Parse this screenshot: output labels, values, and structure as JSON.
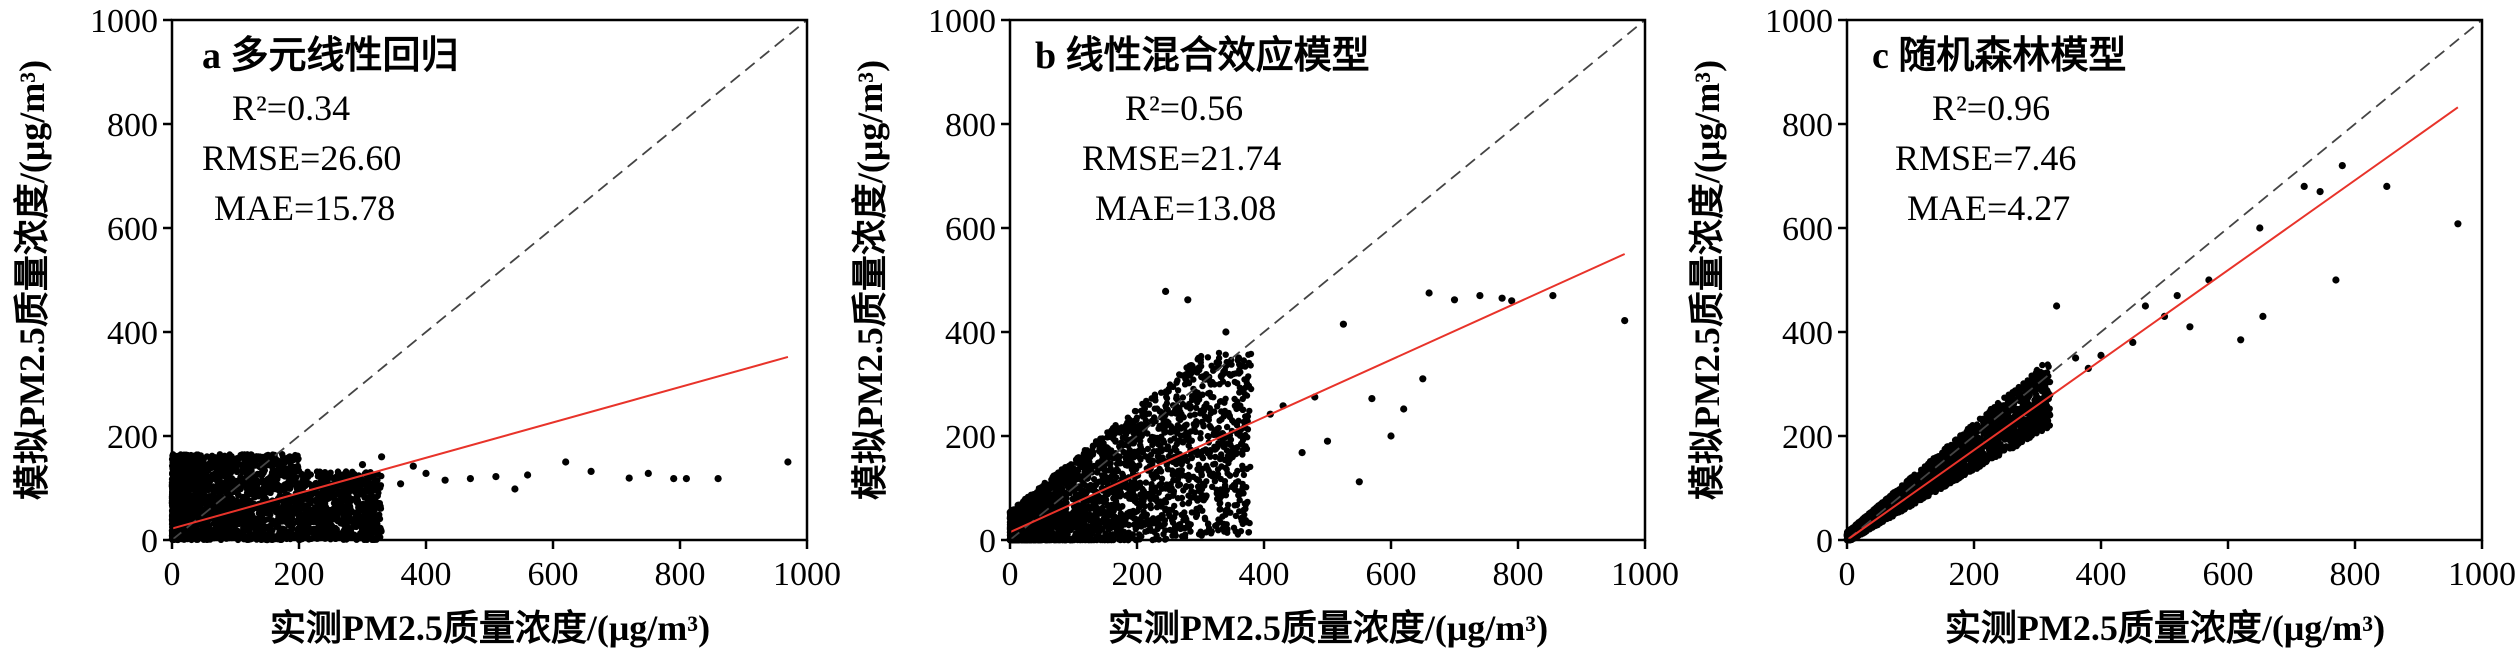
{
  "chart_data": [
    {
      "type": "scatter",
      "panel_label": "a 多元线性回归",
      "stats": {
        "r2_label": "R²=0.34",
        "rmse_label": "RMSE=26.60",
        "mae_label": "MAE=15.78"
      },
      "xlabel": "实测PM2.5质量浓度/(μg/m³)",
      "ylabel": "模拟PM2.5质量浓度/(μg/m³)",
      "xlim": [
        0,
        1000
      ],
      "ylim": [
        0,
        1000
      ],
      "x_ticks": [
        "0",
        "200",
        "400",
        "600",
        "800",
        "1000"
      ],
      "y_ticks": [
        "0",
        "200",
        "400",
        "600",
        "800",
        "1000"
      ],
      "reference_line": {
        "style": "dashed",
        "color": "#444444",
        "from": [
          0,
          0
        ],
        "to": [
          1000,
          1000
        ]
      },
      "fit_line": {
        "color": "#e8332a",
        "from": [
          0,
          22
        ],
        "to": [
          970,
          352
        ]
      },
      "points": [
        [
          400,
          128
        ],
        [
          430,
          115
        ],
        [
          470,
          118
        ],
        [
          510,
          122
        ],
        [
          540,
          98
        ],
        [
          560,
          125
        ],
        [
          620,
          150
        ],
        [
          660,
          132
        ],
        [
          720,
          119
        ],
        [
          750,
          128
        ],
        [
          790,
          118
        ],
        [
          810,
          118
        ],
        [
          860,
          118
        ],
        [
          970,
          150
        ],
        [
          330,
          160
        ],
        [
          300,
          145
        ],
        [
          360,
          108
        ],
        [
          380,
          142
        ],
        [
          260,
          60
        ],
        [
          245,
          38
        ]
      ],
      "cloud": {
        "x_range": [
          0,
          330
        ],
        "y_range": [
          0,
          165
        ]
      }
    },
    {
      "type": "scatter",
      "panel_label": "b 线性混合效应模型",
      "stats": {
        "r2_label": "R²=0.56",
        "rmse_label": "RMSE=21.74",
        "mae_label": "MAE=13.08"
      },
      "xlabel": "实测PM2.5质量浓度/(μg/m³)",
      "ylabel": "模拟PM2.5质量浓度/(μg/m³)",
      "xlim": [
        0,
        1000
      ],
      "ylim": [
        0,
        1000
      ],
      "x_ticks": [
        "0",
        "200",
        "400",
        "600",
        "800",
        "1000"
      ],
      "y_ticks": [
        "0",
        "200",
        "400",
        "600",
        "800",
        "1000"
      ],
      "reference_line": {
        "style": "dashed",
        "color": "#444444",
        "from": [
          0,
          0
        ],
        "to": [
          1000,
          1000
        ]
      },
      "fit_line": {
        "color": "#e8332a",
        "from": [
          0,
          15
        ],
        "to": [
          968,
          550
        ]
      },
      "points": [
        [
          245,
          478
        ],
        [
          280,
          462
        ],
        [
          340,
          400
        ],
        [
          360,
          350
        ],
        [
          410,
          242
        ],
        [
          430,
          258
        ],
        [
          480,
          275
        ],
        [
          500,
          190
        ],
        [
          550,
          112
        ],
        [
          570,
          272
        ],
        [
          600,
          200
        ],
        [
          650,
          310
        ],
        [
          660,
          475
        ],
        [
          700,
          462
        ],
        [
          740,
          470
        ],
        [
          775,
          465
        ],
        [
          790,
          460
        ],
        [
          855,
          470
        ],
        [
          968,
          422
        ],
        [
          460,
          168
        ],
        [
          525,
          415
        ],
        [
          620,
          252
        ]
      ],
      "cloud": {
        "x_range": [
          0,
          380
        ],
        "y_range": [
          0,
          360
        ]
      }
    },
    {
      "type": "scatter",
      "panel_label": "c 随机森林模型",
      "stats": {
        "r2_label": "R²=0.96",
        "rmse_label": "RMSE=7.46",
        "mae_label": "MAE=4.27"
      },
      "xlabel": "实测PM2.5质量浓度/(μg/m³)",
      "ylabel": "模拟PM2.5质量浓度/(μg/m³)",
      "xlim": [
        0,
        1000
      ],
      "ylim": [
        0,
        1000
      ],
      "x_ticks": [
        "0",
        "200",
        "400",
        "600",
        "800",
        "1000"
      ],
      "y_ticks": [
        "0",
        "200",
        "400",
        "600",
        "800",
        "1000"
      ],
      "reference_line": {
        "style": "dashed",
        "color": "#444444",
        "from": [
          0,
          0
        ],
        "to": [
          1000,
          1000
        ]
      },
      "fit_line": {
        "color": "#e8332a",
        "from": [
          0,
          0
        ],
        "to": [
          962,
          832
        ]
      },
      "points": [
        [
          330,
          450
        ],
        [
          360,
          350
        ],
        [
          380,
          330
        ],
        [
          400,
          355
        ],
        [
          450,
          380
        ],
        [
          470,
          450
        ],
        [
          500,
          430
        ],
        [
          520,
          470
        ],
        [
          540,
          410
        ],
        [
          570,
          500
        ],
        [
          620,
          385
        ],
        [
          650,
          600
        ],
        [
          655,
          430
        ],
        [
          720,
          680
        ],
        [
          745,
          670
        ],
        [
          770,
          500
        ],
        [
          780,
          720
        ],
        [
          850,
          680
        ],
        [
          962,
          608
        ]
      ],
      "cloud": {
        "x_range": [
          0,
          320
        ],
        "y_range": [
          0,
          300
        ]
      }
    }
  ]
}
